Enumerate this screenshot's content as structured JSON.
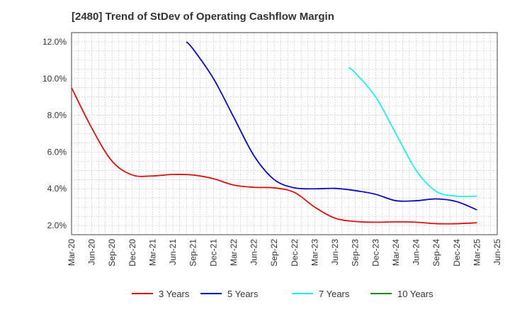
{
  "chart_data": {
    "type": "line",
    "title": "[2480]  Trend of StDev of Operating Cashflow Margin",
    "xlabel": "",
    "ylabel": "",
    "x_ticks": [
      "Mar-20",
      "Jun-20",
      "Sep-20",
      "Dec-20",
      "Mar-21",
      "Jun-21",
      "Sep-21",
      "Dec-21",
      "Mar-22",
      "Jun-22",
      "Sep-22",
      "Dec-22",
      "Mar-23",
      "Jun-23",
      "Sep-23",
      "Dec-23",
      "Mar-24",
      "Jun-24",
      "Sep-24",
      "Dec-24",
      "Mar-25",
      "Jun-25"
    ],
    "y_ticks": [
      2.0,
      4.0,
      6.0,
      8.0,
      10.0,
      12.0
    ],
    "y_tick_labels": [
      "2.0%",
      "4.0%",
      "6.0%",
      "8.0%",
      "10.0%",
      "12.0%"
    ],
    "ylim": [
      1.5,
      12.5
    ],
    "grid": true,
    "legend_position": "bottom",
    "series": [
      {
        "name": "3 Years",
        "color": "#dd1111",
        "points": [
          [
            "Mar-20",
            9.5
          ],
          [
            "Jun-20",
            7.3
          ],
          [
            "Sep-20",
            5.5
          ],
          [
            "Dec-20",
            4.75
          ],
          [
            "Mar-21",
            4.7
          ],
          [
            "Jun-21",
            4.78
          ],
          [
            "Sep-21",
            4.75
          ],
          [
            "Dec-21",
            4.55
          ],
          [
            "Mar-22",
            4.2
          ],
          [
            "Jun-22",
            4.08
          ],
          [
            "Sep-22",
            4.05
          ],
          [
            "Dec-22",
            3.8
          ],
          [
            "Mar-23",
            3.0
          ],
          [
            "Jun-23",
            2.4
          ],
          [
            "Sep-23",
            2.22
          ],
          [
            "Dec-23",
            2.18
          ],
          [
            "Mar-24",
            2.2
          ],
          [
            "Jun-24",
            2.18
          ],
          [
            "Sep-24",
            2.1
          ],
          [
            "Dec-24",
            2.1
          ],
          [
            "Mar-25",
            2.15
          ]
        ]
      },
      {
        "name": "5 Years",
        "color": "#0b0bbb",
        "points": [
          [
            "Aug-21",
            12.0
          ],
          [
            "Sep-21",
            11.6
          ],
          [
            "Dec-21",
            10.0
          ],
          [
            "Mar-22",
            7.9
          ],
          [
            "Jun-22",
            5.8
          ],
          [
            "Sep-22",
            4.5
          ],
          [
            "Dec-22",
            4.05
          ],
          [
            "Mar-23",
            4.0
          ],
          [
            "Jun-23",
            4.02
          ],
          [
            "Sep-23",
            3.9
          ],
          [
            "Dec-23",
            3.7
          ],
          [
            "Mar-24",
            3.35
          ],
          [
            "Jun-24",
            3.35
          ],
          [
            "Sep-24",
            3.45
          ],
          [
            "Dec-24",
            3.3
          ],
          [
            "Mar-25",
            2.85
          ]
        ]
      },
      {
        "name": "7 Years",
        "color": "#22eeee",
        "points": [
          [
            "Aug-23",
            10.6
          ],
          [
            "Sep-23",
            10.3
          ],
          [
            "Dec-23",
            9.0
          ],
          [
            "Mar-24",
            7.0
          ],
          [
            "Jun-24",
            5.0
          ],
          [
            "Sep-24",
            3.85
          ],
          [
            "Dec-24",
            3.6
          ],
          [
            "Mar-25",
            3.6
          ]
        ]
      },
      {
        "name": "10 Years",
        "color": "#228822",
        "points": []
      }
    ]
  }
}
